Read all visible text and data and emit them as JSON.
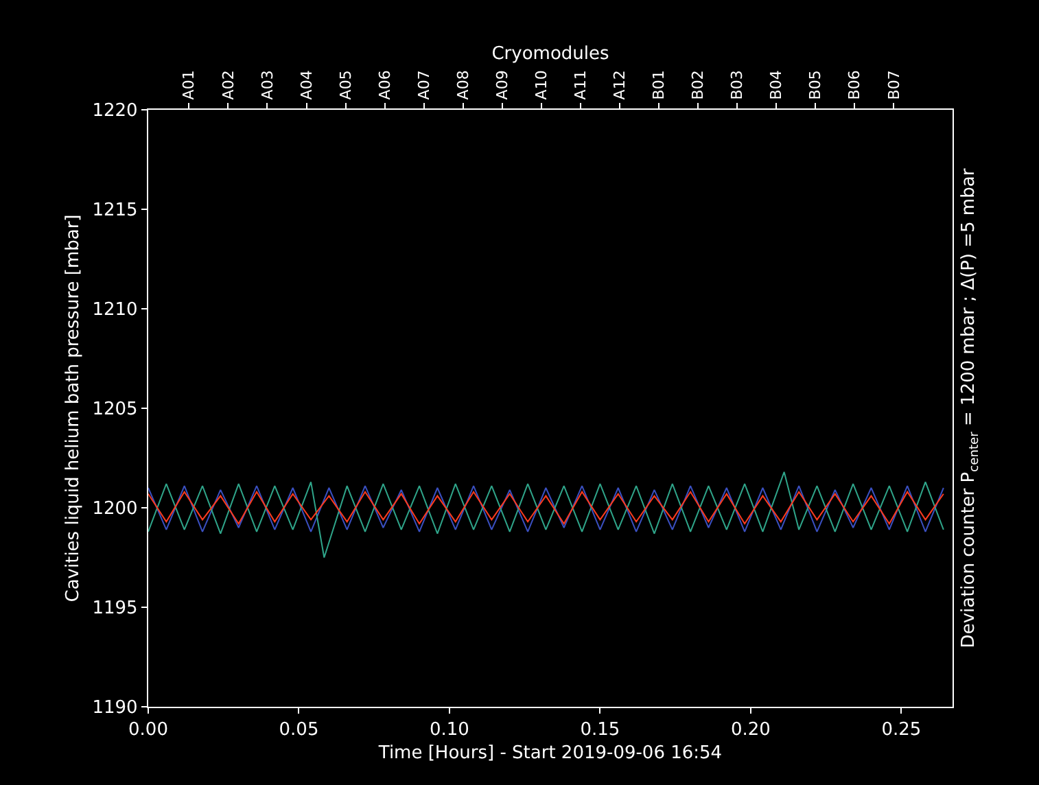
{
  "chart_data": {
    "type": "line",
    "xlabel": "Time [Hours] - Start 2019-09-06 16:54",
    "ylabel": "Cavities liquid helium bath pressure [mbar]",
    "y2label": "Deviation counter P$_{center}$ = 1200 mbar ; Δ(P) =5 mbar",
    "x2label": "Cryomodules",
    "xlim": [
      0,
      0.267
    ],
    "xticks": [
      {
        "value": 0,
        "label": "0.00"
      },
      {
        "value": 0.05,
        "label": "0.05"
      },
      {
        "value": 0.1,
        "label": "0.10"
      },
      {
        "value": 0.15,
        "label": "0.15"
      },
      {
        "value": 0.2,
        "label": "0.20"
      },
      {
        "value": 0.25,
        "label": "0.25"
      }
    ],
    "annotations": [
      "A01",
      "A02",
      "A03",
      "A04",
      "A05",
      "A06",
      "A07",
      "A08",
      "A09",
      "A10",
      "A11",
      "A12",
      "B01",
      "B02",
      "B03",
      "B04",
      "B05",
      "B06",
      "B07"
    ],
    "ylim": [
      1190,
      1220
    ],
    "yticks": [
      1190,
      1195,
      1200,
      1205,
      1210,
      1215,
      1220
    ],
    "x": [
      0,
      0.006,
      0.012,
      0.018,
      0.024,
      0.03,
      0.036,
      0.042,
      0.048,
      0.054,
      0.06,
      0.066,
      0.072,
      0.078,
      0.084,
      0.09,
      0.096,
      0.102,
      0.108,
      0.114,
      0.12,
      0.126,
      0.132,
      0.138,
      0.144,
      0.15,
      0.156,
      0.162,
      0.168,
      0.174,
      0.18,
      0.186,
      0.192,
      0.198,
      0.204,
      0.21,
      0.216,
      0.222,
      0.228,
      0.234,
      0.24,
      0.246,
      0.252,
      0.258,
      0.264
    ],
    "series": [
      {
        "color": "#3a4fc0",
        "values": [
          1201.0,
          1198.9,
          1201.1,
          1198.8,
          1200.9,
          1199.0,
          1201.1,
          1198.9,
          1201.0,
          1198.8,
          1201.0,
          1198.9,
          1201.1,
          1199.0,
          1200.9,
          1198.8,
          1201.0,
          1198.9,
          1201.1,
          1198.9,
          1200.9,
          1198.8,
          1201.0,
          1199.0,
          1201.1,
          1198.9,
          1201.0,
          1198.8,
          1200.9,
          1198.9,
          1201.1,
          1199.0,
          1201.0,
          1198.8,
          1201.0,
          1198.9,
          1201.1,
          1198.8,
          1200.9,
          1199.0,
          1201.0,
          1198.9,
          1201.1,
          1198.8,
          1201.0
        ]
      },
      {
        "color": "#2fa58a",
        "x": [
          0,
          0.006,
          0.012,
          0.018,
          0.024,
          0.03,
          0.036,
          0.042,
          0.048,
          0.054,
          0.0584,
          0.066,
          0.072,
          0.078,
          0.084,
          0.09,
          0.096,
          0.102,
          0.108,
          0.114,
          0.12,
          0.126,
          0.132,
          0.138,
          0.144,
          0.15,
          0.156,
          0.162,
          0.168,
          0.174,
          0.18,
          0.186,
          0.192,
          0.198,
          0.204,
          0.2111,
          0.216,
          0.222,
          0.228,
          0.234,
          0.24,
          0.246,
          0.252,
          0.258,
          0.264
        ],
        "values": [
          1198.8,
          1201.2,
          1198.9,
          1201.1,
          1198.7,
          1201.2,
          1198.8,
          1201.1,
          1198.9,
          1201.3,
          1197.5,
          1201.1,
          1198.8,
          1201.2,
          1198.9,
          1201.1,
          1198.7,
          1201.2,
          1198.9,
          1201.1,
          1198.8,
          1201.2,
          1198.9,
          1201.1,
          1198.8,
          1201.2,
          1198.9,
          1201.1,
          1198.7,
          1201.2,
          1198.8,
          1201.1,
          1198.9,
          1201.2,
          1198.8,
          1201.8,
          1198.9,
          1201.1,
          1198.8,
          1201.2,
          1198.9,
          1201.1,
          1198.8,
          1201.3,
          1198.9
        ]
      },
      {
        "color": "#ff3b1f",
        "values": [
          1200.7,
          1199.3,
          1200.8,
          1199.4,
          1200.6,
          1199.2,
          1200.8,
          1199.3,
          1200.7,
          1199.4,
          1200.6,
          1199.3,
          1200.8,
          1199.4,
          1200.7,
          1199.2,
          1200.6,
          1199.3,
          1200.8,
          1199.4,
          1200.7,
          1199.3,
          1200.6,
          1199.2,
          1200.8,
          1199.4,
          1200.7,
          1199.3,
          1200.6,
          1199.4,
          1200.8,
          1199.3,
          1200.7,
          1199.2,
          1200.6,
          1199.3,
          1200.8,
          1199.4,
          1200.7,
          1199.3,
          1200.6,
          1199.2,
          1200.8,
          1199.4,
          1200.7
        ]
      }
    ],
    "marker": "none",
    "line_style": "solid"
  }
}
